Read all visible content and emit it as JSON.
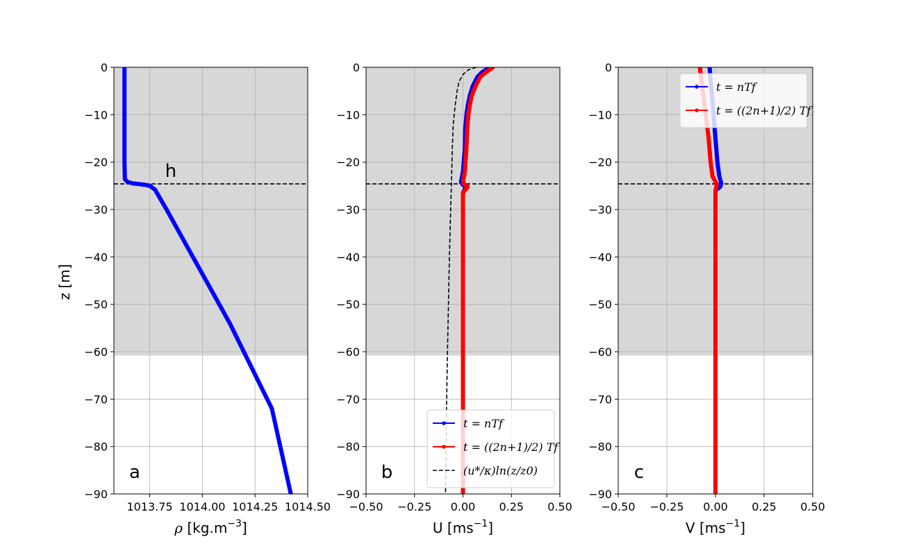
{
  "chart_data": [
    {
      "type": "line",
      "panel_letter": "a",
      "xlabel_main": "ρ",
      "xlabel_unit": "[kg.m",
      "xlabel_exp": "−3",
      "xlabel_close": "]",
      "ylabel": "z [m]",
      "xlim": [
        1013.58,
        1014.5
      ],
      "ylim": [
        -90,
        0
      ],
      "xticks": [
        1013.75,
        1014.0,
        1014.25,
        1014.5
      ],
      "xtick_labels": [
        "1013.75",
        "1014.00",
        "1014.25",
        "1014.50"
      ],
      "yticks": [
        0,
        -10,
        -20,
        -30,
        -40,
        -50,
        -60,
        -70,
        -80,
        -90
      ],
      "ytick_labels": [
        "0",
        "−10",
        "−20",
        "−30",
        "−40",
        "−50",
        "−60",
        "−70",
        "−80",
        "−90"
      ],
      "shade_below": -60.8,
      "hline": -24.6,
      "annotation": "h",
      "annotation_pos": {
        "x": 1013.85,
        "y": -22.5
      },
      "grid": true,
      "series": [
        {
          "color": "#0000ff",
          "x": [
            1013.63,
            1013.63,
            1013.63,
            1013.632,
            1013.645,
            1013.67,
            1013.7,
            1013.73,
            1013.75,
            1013.775,
            1013.83,
            1013.93,
            1014.03,
            1014.13,
            1014.23,
            1014.33,
            1014.42
          ],
          "y": [
            0,
            -10,
            -20,
            -23.6,
            -24.2,
            -24.5,
            -24.65,
            -24.8,
            -25.0,
            -25.8,
            -30,
            -38,
            -46,
            -54,
            -63,
            -72,
            -90
          ]
        }
      ]
    },
    {
      "type": "line",
      "panel_letter": "b",
      "xlabel_main": "U",
      "xlabel_unit": "[ms",
      "xlabel_exp": "−1",
      "xlabel_close": "]",
      "xlim": [
        -0.5,
        0.5
      ],
      "ylim": [
        -90,
        0
      ],
      "xticks": [
        -0.5,
        -0.25,
        0.0,
        0.25,
        0.5
      ],
      "xtick_labels": [
        "−0.50",
        "−0.25",
        "0.00",
        "0.25",
        "0.50"
      ],
      "yticks": [
        0,
        -10,
        -20,
        -30,
        -40,
        -50,
        -60,
        -70,
        -80,
        -90
      ],
      "ytick_labels": [
        "0",
        "−10",
        "−20",
        "−30",
        "−40",
        "−50",
        "−60",
        "−70",
        "−80",
        "−90"
      ],
      "shade_below": -60.8,
      "hline": -24.6,
      "grid": true,
      "legend_position": "lower-right",
      "legend": [
        {
          "style": "blue-dot",
          "text": "t = nTf"
        },
        {
          "style": "red-dot",
          "text": "t = ((2n+1)/2) Tf"
        },
        {
          "style": "black-dash",
          "text": "(u*/κ)ln(z/z0)"
        }
      ],
      "series": [
        {
          "color": "#0000ff",
          "x": [
            0.14,
            0.1,
            0.075,
            0.05,
            0.035,
            0.025,
            0.018,
            0.012,
            0.01,
            0.0,
            -0.01,
            0.0,
            0.015,
            0.0,
            0.0,
            0.0,
            0.0
          ],
          "y": [
            0,
            -1,
            -2,
            -4,
            -6,
            -8,
            -10,
            -13,
            -17,
            -22,
            -24.2,
            -24.8,
            -25.2,
            -26.5,
            -30,
            -60,
            -90
          ]
        },
        {
          "color": "#ff0000",
          "x": [
            0.155,
            0.12,
            0.09,
            0.065,
            0.045,
            0.035,
            0.028,
            0.022,
            0.018,
            0.01,
            0.0,
            0.01,
            0.025,
            0.0,
            0.0,
            0.0,
            0.0
          ],
          "y": [
            0,
            -1,
            -2,
            -4,
            -6,
            -8,
            -10,
            -13,
            -17,
            -22,
            -24.2,
            -24.8,
            -25.2,
            -26.5,
            -30,
            -60,
            -90
          ]
        },
        {
          "color": "#000000",
          "dashed": true,
          "x": [
            0.07,
            0.03,
            0.0,
            -0.02,
            -0.03,
            -0.04,
            -0.05,
            -0.055,
            -0.06,
            -0.065,
            -0.07,
            -0.075,
            -0.08,
            -0.085,
            -0.09
          ],
          "y": [
            0,
            -0.5,
            -1.5,
            -3,
            -5,
            -8,
            -12,
            -17,
            -25,
            -32,
            -40,
            -50,
            -60,
            -72,
            -90
          ]
        }
      ]
    },
    {
      "type": "line",
      "panel_letter": "c",
      "xlabel_main": "V",
      "xlabel_unit": "[ms",
      "xlabel_exp": "−1",
      "xlabel_close": "]",
      "xlim": [
        -0.5,
        0.5
      ],
      "ylim": [
        -90,
        0
      ],
      "xticks": [
        -0.5,
        -0.25,
        0.0,
        0.25,
        0.5
      ],
      "xtick_labels": [
        "−0.50",
        "−0.25",
        "0.00",
        "0.25",
        "0.50"
      ],
      "yticks": [
        0,
        -10,
        -20,
        -30,
        -40,
        -50,
        -60,
        -70,
        -80,
        -90
      ],
      "ytick_labels": [
        "0",
        "−10",
        "−20",
        "−30",
        "−40",
        "−50",
        "−60",
        "−70",
        "−80",
        "−90"
      ],
      "shade_below": -60.8,
      "hline": -24.6,
      "grid": true,
      "legend_position": "upper-right",
      "legend": [
        {
          "style": "blue-dot",
          "text": "t = nTf"
        },
        {
          "style": "red-dot",
          "text": "t = ((2n+1)/2) Tf"
        }
      ],
      "series": [
        {
          "color": "#0000ff",
          "x": [
            -0.03,
            -0.02,
            -0.01,
            0.0,
            0.01,
            0.02,
            0.03,
            0.025,
            0.0,
            0.0,
            0.0
          ],
          "y": [
            0,
            -5,
            -10,
            -15,
            -20,
            -23,
            -24.5,
            -25.2,
            -26,
            -30,
            -90
          ]
        },
        {
          "color": "#ff0000",
          "x": [
            -0.08,
            -0.065,
            -0.05,
            -0.035,
            -0.025,
            -0.015,
            0.005,
            0.005,
            0.0,
            0.0,
            0.0
          ],
          "y": [
            0,
            -5,
            -10,
            -15,
            -20,
            -23,
            -24.5,
            -25.2,
            -26,
            -30,
            -90
          ]
        }
      ]
    }
  ]
}
